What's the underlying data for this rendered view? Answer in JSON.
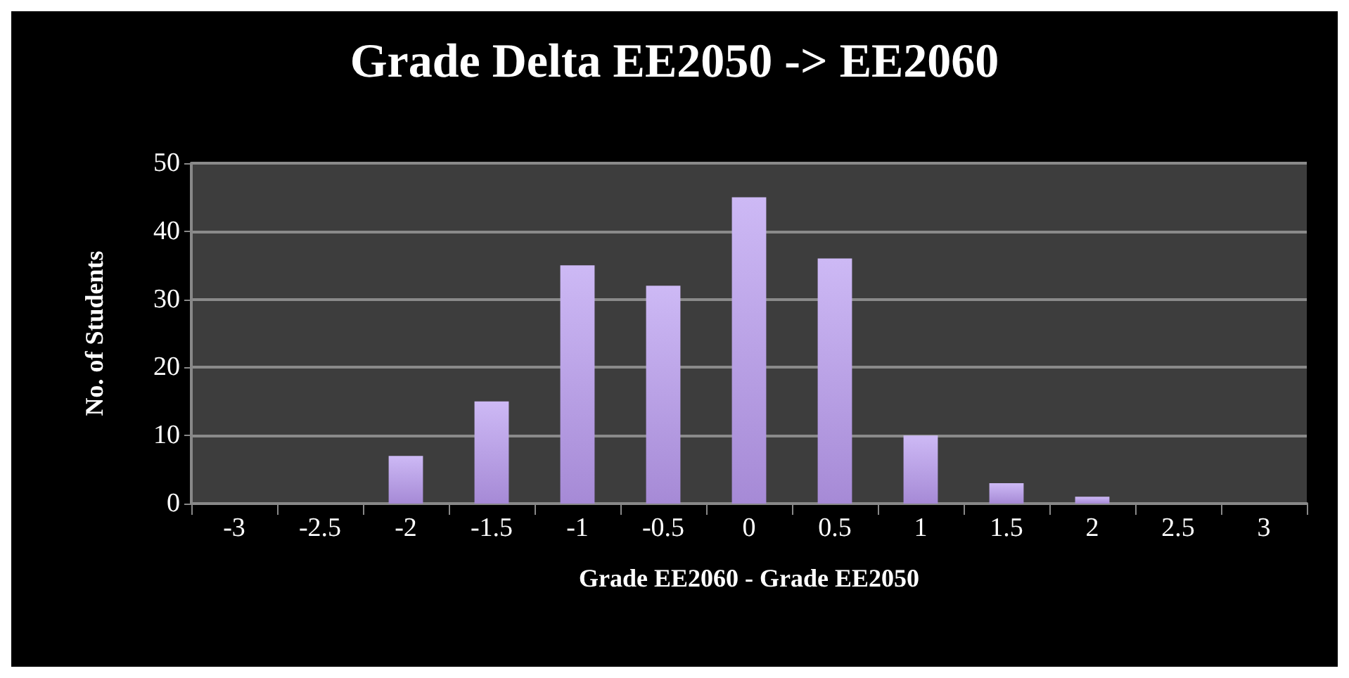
{
  "chart_data": {
    "type": "bar",
    "title": "Grade Delta EE2050 -> EE2060",
    "xlabel": "Grade EE2060 - Grade EE2050",
    "ylabel": "No. of Students",
    "categories": [
      "-3",
      "-2.5",
      "-2",
      "-1.5",
      "-1",
      "-0.5",
      "0",
      "0.5",
      "1",
      "1.5",
      "2",
      "2.5",
      "3"
    ],
    "values": [
      0,
      0,
      7,
      15,
      35,
      32,
      45,
      36,
      10,
      3,
      1,
      0,
      0
    ],
    "color": "#a68ad6",
    "ylim": [
      0,
      50
    ],
    "yticks": [
      0,
      10,
      20,
      30,
      40,
      50
    ],
    "grid": "y"
  }
}
